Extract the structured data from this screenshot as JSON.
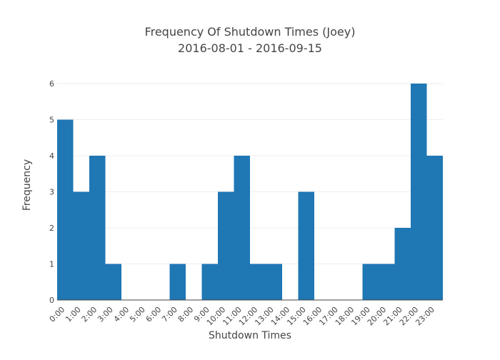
{
  "chart_data": {
    "type": "bar",
    "title": "Frequency Of Shutdown Times (Joey)",
    "subtitle": "2016-08-01 - 2016-09-15",
    "xlabel": "Shutdown Times",
    "ylabel": "Frequency",
    "ylim": [
      0,
      6
    ],
    "yticks": [
      0,
      1,
      2,
      3,
      4,
      5,
      6
    ],
    "grid": true,
    "categories": [
      "0:00",
      "1:00",
      "2:00",
      "3:00",
      "4:00",
      "5:00",
      "6:00",
      "7:00",
      "8:00",
      "9:00",
      "10:00",
      "11:00",
      "12:00",
      "13:00",
      "14:00",
      "15:00",
      "16:00",
      "17:00",
      "18:00",
      "19:00",
      "20:00",
      "21:00",
      "22:00",
      "23:00"
    ],
    "values": [
      5,
      3,
      4,
      1,
      0,
      0,
      0,
      1,
      0,
      1,
      3,
      4,
      1,
      1,
      0,
      3,
      0,
      0,
      0,
      1,
      1,
      2,
      6,
      4
    ],
    "bar_color": "#1f77b4"
  }
}
